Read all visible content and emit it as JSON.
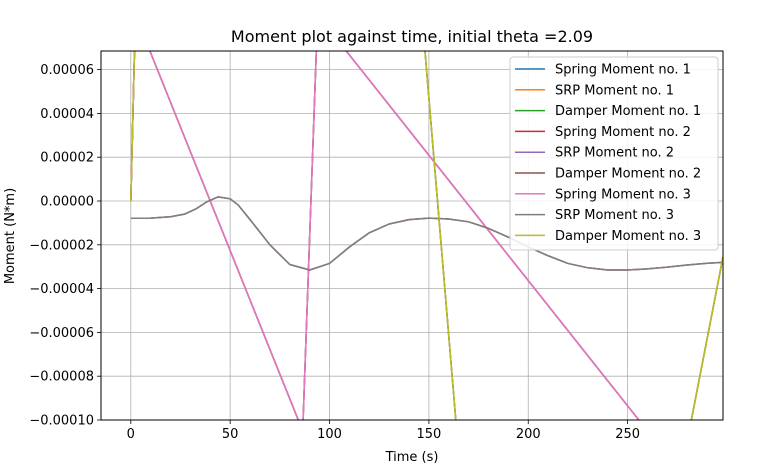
{
  "chart_data": {
    "type": "line",
    "title": "Moment plot against time, initial theta =2.09",
    "xlabel": "Time (s)",
    "ylabel": "Moment (N*m)",
    "xlim": [
      -15,
      298
    ],
    "ylim": [
      -0.0001,
      6.85e-05
    ],
    "xticks": [
      0,
      50,
      100,
      150,
      200,
      250
    ],
    "xtick_labels": [
      "0",
      "50",
      "100",
      "150",
      "200",
      "250"
    ],
    "yticks": [
      6e-05,
      4e-05,
      2e-05,
      0.0,
      -2e-05,
      -4e-05,
      -6e-05,
      -8e-05,
      -0.0001
    ],
    "ytick_labels": [
      "0.00006",
      "0.00004",
      "0.00002",
      "0.00000",
      "−0.00002",
      "−0.00004",
      "−0.00006",
      "−0.00008",
      "−0.00010"
    ],
    "grid": true,
    "legend_position": "top-right",
    "series": [
      {
        "name": "Spring Moment no. 1",
        "color": "#1f77b4",
        "x": [
          0,
          2.3,
          86.5,
          94,
          260,
          262
        ],
        "y": [
          0.0,
          8.5e-05,
          -0.000105,
          8.5e-05,
          -0.000105,
          -0.00012
        ]
      },
      {
        "name": "SRP Moment no. 1",
        "color": "#ff7f0e",
        "x": [
          0,
          10,
          20,
          27,
          33,
          38,
          44,
          50,
          54,
          60,
          70,
          80,
          90,
          100,
          110,
          120,
          130,
          140,
          150,
          160,
          170,
          180,
          190,
          200,
          210,
          220,
          230,
          240,
          250,
          260,
          270,
          280,
          290,
          298
        ],
        "y": [
          -7.9e-06,
          -7.8e-06,
          -7.2e-06,
          -6e-06,
          -3.5e-06,
          -5e-07,
          1.9e-06,
          1e-06,
          -1.8e-06,
          -8.5e-06,
          -2e-05,
          -2.9e-05,
          -3.15e-05,
          -2.85e-05,
          -2.1e-05,
          -1.45e-05,
          -1.05e-05,
          -8.5e-06,
          -7.8e-06,
          -8.2e-06,
          -9.5e-06,
          -1.25e-05,
          -1.65e-05,
          -2.1e-05,
          -2.5e-05,
          -2.85e-05,
          -3.05e-05,
          -3.15e-05,
          -3.15e-05,
          -3.1e-05,
          -3.02e-05,
          -2.92e-05,
          -2.84e-05,
          -2.8e-05
        ]
      },
      {
        "name": "Damper Moment no. 1",
        "color": "#2ca02c",
        "x": [
          0,
          2.3,
          146.5,
          164,
          281,
          298
        ],
        "y": [
          0.0,
          8.5e-05,
          8.5e-05,
          -0.000105,
          -0.000105,
          -2.55e-05
        ]
      },
      {
        "name": "Spring Moment no. 2",
        "color": "#d62728",
        "x": [
          0,
          2.3,
          86.5,
          94,
          260,
          262
        ],
        "y": [
          0.0,
          8.5e-05,
          -0.000105,
          8.5e-05,
          -0.000105,
          -0.00012
        ]
      },
      {
        "name": "SRP Moment no. 2",
        "color": "#9467bd",
        "x": [
          0,
          10,
          20,
          27,
          33,
          38,
          44,
          50,
          54,
          60,
          70,
          80,
          90,
          100,
          110,
          120,
          130,
          140,
          150,
          160,
          170,
          180,
          190,
          200,
          210,
          220,
          230,
          240,
          250,
          260,
          270,
          280,
          290,
          298
        ],
        "y": [
          -7.9e-06,
          -7.8e-06,
          -7.2e-06,
          -6e-06,
          -3.5e-06,
          -5e-07,
          1.9e-06,
          1e-06,
          -1.8e-06,
          -8.5e-06,
          -2e-05,
          -2.9e-05,
          -3.15e-05,
          -2.85e-05,
          -2.1e-05,
          -1.45e-05,
          -1.05e-05,
          -8.5e-06,
          -7.8e-06,
          -8.2e-06,
          -9.5e-06,
          -1.25e-05,
          -1.65e-05,
          -2.1e-05,
          -2.5e-05,
          -2.85e-05,
          -3.05e-05,
          -3.15e-05,
          -3.15e-05,
          -3.1e-05,
          -3.02e-05,
          -2.92e-05,
          -2.84e-05,
          -2.8e-05
        ]
      },
      {
        "name": "Damper Moment no. 2",
        "color": "#8c564b",
        "x": [
          0,
          2.3,
          146.5,
          164,
          281,
          298
        ],
        "y": [
          0.0,
          8.5e-05,
          8.5e-05,
          -0.000105,
          -0.000105,
          -2.55e-05
        ]
      },
      {
        "name": "Spring Moment no. 3",
        "color": "#e377c2",
        "x": [
          0,
          2.3,
          86.5,
          94,
          260,
          262
        ],
        "y": [
          0.0,
          8.5e-05,
          -0.000105,
          8.5e-05,
          -0.000105,
          -0.00012
        ]
      },
      {
        "name": "SRP Moment no. 3",
        "color": "#7f7f7f",
        "x": [
          0,
          10,
          20,
          27,
          33,
          38,
          44,
          50,
          54,
          60,
          70,
          80,
          90,
          100,
          110,
          120,
          130,
          140,
          150,
          160,
          170,
          180,
          190,
          200,
          210,
          220,
          230,
          240,
          250,
          260,
          270,
          280,
          290,
          298
        ],
        "y": [
          -7.9e-06,
          -7.8e-06,
          -7.2e-06,
          -6e-06,
          -3.5e-06,
          -5e-07,
          1.9e-06,
          1e-06,
          -1.8e-06,
          -8.5e-06,
          -2e-05,
          -2.9e-05,
          -3.15e-05,
          -2.85e-05,
          -2.1e-05,
          -1.45e-05,
          -1.05e-05,
          -8.5e-06,
          -7.8e-06,
          -8.2e-06,
          -9.5e-06,
          -1.25e-05,
          -1.65e-05,
          -2.1e-05,
          -2.5e-05,
          -2.85e-05,
          -3.05e-05,
          -3.15e-05,
          -3.15e-05,
          -3.1e-05,
          -3.02e-05,
          -2.92e-05,
          -2.84e-05,
          -2.8e-05
        ]
      },
      {
        "name": "Damper Moment no. 3",
        "color": "#bcbd22",
        "x": [
          0,
          2.3,
          146.5,
          164,
          281,
          298
        ],
        "y": [
          0.0,
          8.5e-05,
          8.5e-05,
          -0.000105,
          -0.000105,
          -2.55e-05
        ]
      }
    ]
  }
}
